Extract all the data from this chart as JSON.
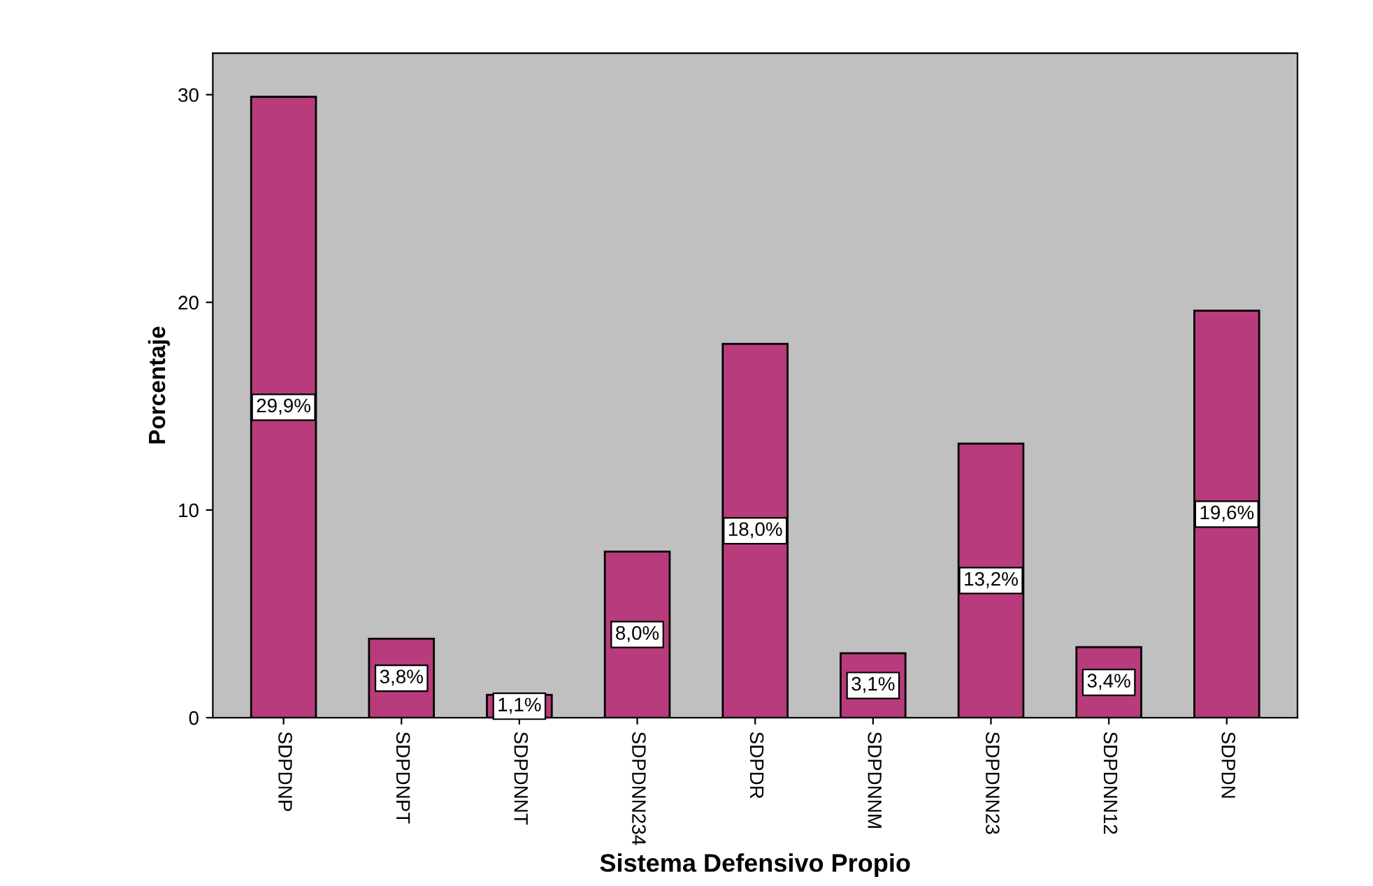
{
  "chart_data": {
    "type": "bar",
    "xlabel": "Sistema Defensivo Propio",
    "ylabel": "Porcentaje",
    "categories": [
      "SDPDNP",
      "SDPDNPT",
      "SDPDNNT",
      "SDPDNN234",
      "SDPDR",
      "SDPDNNM",
      "SDPDNN23",
      "SDPDNN12",
      "SDPDN"
    ],
    "values": [
      29.9,
      3.8,
      1.1,
      8.0,
      18.0,
      3.1,
      13.2,
      3.4,
      19.6
    ],
    "value_labels": [
      "29,9%",
      "3,8%",
      "1,1%",
      "8,0%",
      "18,0%",
      "3,1%",
      "13,2%",
      "3,4%",
      "19,6%"
    ],
    "color": "#b83c7c",
    "ylim": [
      0,
      32
    ],
    "yticks": [
      0,
      10,
      20,
      30
    ],
    "grid": false
  }
}
